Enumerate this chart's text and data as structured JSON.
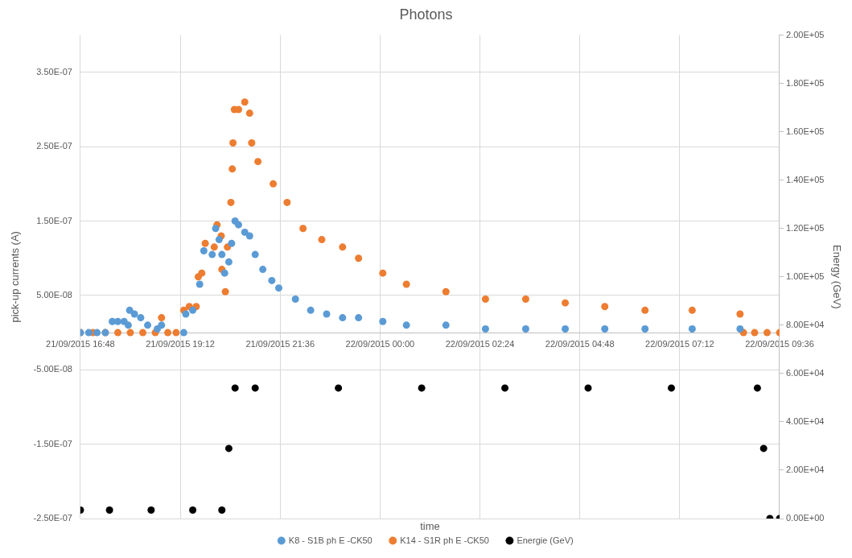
{
  "chart_data": {
    "type": "scatter",
    "title": "Photons",
    "xlabel": "time",
    "ylabel": "pick-up currents (A)",
    "y2label": "Energy (GeV)",
    "xlim": [
      "2015-09-21T16:48",
      "2015-09-22T09:36"
    ],
    "xticks": [
      {
        "value": "2015-09-21T16:48",
        "label": "21/09/2015 16:48"
      },
      {
        "value": "2015-09-21T19:12",
        "label": "21/09/2015 19:12"
      },
      {
        "value": "2015-09-21T21:36",
        "label": "21/09/2015 21:36"
      },
      {
        "value": "2015-09-22T00:00",
        "label": "22/09/2015 00:00"
      },
      {
        "value": "2015-09-22T02:24",
        "label": "22/09/2015 02:24"
      },
      {
        "value": "2015-09-22T04:48",
        "label": "22/09/2015 04:48"
      },
      {
        "value": "2015-09-22T07:12",
        "label": "22/09/2015 07:12"
      },
      {
        "value": "2015-09-22T09:36",
        "label": "22/09/2015 09:36"
      }
    ],
    "ylim": [
      -2.5e-07,
      4e-07
    ],
    "yticks": [
      {
        "value": -2.5e-07,
        "label": "-2.50E-07"
      },
      {
        "value": -1.5e-07,
        "label": "-1.50E-07"
      },
      {
        "value": -5e-08,
        "label": "-5.00E-08"
      },
      {
        "value": 5e-08,
        "label": "5.00E-08"
      },
      {
        "value": 1.5e-07,
        "label": "1.50E-07"
      },
      {
        "value": 2.5e-07,
        "label": "2.50E-07"
      },
      {
        "value": 3.5e-07,
        "label": "3.50E-07"
      }
    ],
    "y2lim": [
      0,
      200000
    ],
    "y2ticks": [
      {
        "value": 0,
        "label": "0.00E+00"
      },
      {
        "value": 20000,
        "label": "2.00E+04"
      },
      {
        "value": 40000,
        "label": "4.00E+04"
      },
      {
        "value": 60000,
        "label": "6.00E+04"
      },
      {
        "value": 80000,
        "label": "8.00E+04"
      },
      {
        "value": 100000,
        "label": "1.00E+05"
      },
      {
        "value": 120000,
        "label": "1.20E+05"
      },
      {
        "value": 140000,
        "label": "1.40E+05"
      },
      {
        "value": 160000,
        "label": "1.60E+05"
      },
      {
        "value": 180000,
        "label": "1.80E+05"
      },
      {
        "value": 200000,
        "label": "2.00E+05"
      }
    ],
    "grid": true,
    "legend": "bottom",
    "marker": "circle",
    "series": [
      {
        "name": "K8 - S1B ph E -CK50",
        "color": "#5b9bd5",
        "x": [
          "2015-09-21T16:48",
          "2015-09-21T17:00",
          "2015-09-21T17:12",
          "2015-09-21T17:24",
          "2015-09-21T17:34",
          "2015-09-21T17:42",
          "2015-09-21T17:51",
          "2015-09-21T17:57",
          "2015-09-21T17:59",
          "2015-09-21T18:06",
          "2015-09-21T18:15",
          "2015-09-21T18:25",
          "2015-09-21T18:39",
          "2015-09-21T18:45",
          "2015-09-21T19:17",
          "2015-09-21T19:20",
          "2015-09-21T19:30",
          "2015-09-21T19:40",
          "2015-09-21T19:46",
          "2015-09-21T19:58",
          "2015-09-21T20:03",
          "2015-09-21T20:08",
          "2015-09-21T20:12",
          "2015-09-21T20:16",
          "2015-09-21T20:22",
          "2015-09-21T20:26",
          "2015-09-21T20:31",
          "2015-09-21T20:36",
          "2015-09-21T20:45",
          "2015-09-21T20:52",
          "2015-09-21T21:00",
          "2015-09-21T21:11",
          "2015-09-21T21:24",
          "2015-09-21T21:34",
          "2015-09-21T21:58",
          "2015-09-21T22:20",
          "2015-09-21T22:43",
          "2015-09-21T23:06",
          "2015-09-21T23:29",
          "2015-09-22T00:04",
          "2015-09-22T00:38",
          "2015-09-22T01:35",
          "2015-09-22T02:32",
          "2015-09-22T03:30",
          "2015-09-22T04:27",
          "2015-09-22T05:24",
          "2015-09-22T06:22",
          "2015-09-22T07:30",
          "2015-09-22T08:39"
        ],
        "values": [
          0,
          0,
          0,
          0,
          1.5e-08,
          1.5e-08,
          1.5e-08,
          1e-08,
          3e-08,
          2.5e-08,
          2e-08,
          1e-08,
          5e-09,
          1e-08,
          0,
          2.5e-08,
          3e-08,
          6.5e-08,
          1.1e-07,
          1.05e-07,
          1.4e-07,
          1.25e-07,
          1.05e-07,
          8e-08,
          9.5e-08,
          1.2e-07,
          1.5e-07,
          1.45e-07,
          1.35e-07,
          1.3e-07,
          1.05e-07,
          8.5e-08,
          7e-08,
          6e-08,
          4.5e-08,
          3e-08,
          2.5e-08,
          2e-08,
          2e-08,
          1.5e-08,
          1e-08,
          1e-08,
          5e-09,
          5e-09,
          5e-09,
          5e-09,
          5e-09,
          5e-09,
          5e-09
        ]
      },
      {
        "name": "K14 - S1R ph E -CK50",
        "color": "#ed7d31",
        "x": [
          "2015-09-21T16:48",
          "2015-09-21T17:06",
          "2015-09-21T17:24",
          "2015-09-21T17:42",
          "2015-09-21T18:00",
          "2015-09-21T18:18",
          "2015-09-21T18:36",
          "2015-09-21T18:45",
          "2015-09-21T18:54",
          "2015-09-21T19:06",
          "2015-09-21T19:17",
          "2015-09-21T19:25",
          "2015-09-21T19:35",
          "2015-09-21T19:38",
          "2015-09-21T19:43",
          "2015-09-21T19:48",
          "2015-09-21T20:01",
          "2015-09-21T20:05",
          "2015-09-21T20:11",
          "2015-09-21T20:12",
          "2015-09-21T20:17",
          "2015-09-21T20:20",
          "2015-09-21T20:25",
          "2015-09-21T20:27",
          "2015-09-21T20:28",
          "2015-09-21T20:30",
          "2015-09-21T20:36",
          "2015-09-21T20:45",
          "2015-09-21T20:52",
          "2015-09-21T20:55",
          "2015-09-21T21:04",
          "2015-09-21T21:26",
          "2015-09-21T21:46",
          "2015-09-21T22:09",
          "2015-09-21T22:36",
          "2015-09-21T23:06",
          "2015-09-21T23:29",
          "2015-09-22T00:04",
          "2015-09-22T00:38",
          "2015-09-22T01:35",
          "2015-09-22T02:32",
          "2015-09-22T03:30",
          "2015-09-22T04:27",
          "2015-09-22T05:24",
          "2015-09-22T06:22",
          "2015-09-22T07:30",
          "2015-09-22T08:39",
          "2015-09-22T08:44",
          "2015-09-22T09:00",
          "2015-09-22T09:18",
          "2015-09-22T09:36"
        ],
        "values": [
          0,
          0,
          0,
          0,
          0,
          0,
          0,
          2e-08,
          0,
          0,
          3e-08,
          3.5e-08,
          3.5e-08,
          7.5e-08,
          8e-08,
          1.2e-07,
          1.15e-07,
          1.45e-07,
          1.3e-07,
          8.5e-08,
          5.5e-08,
          1.15e-07,
          1.75e-07,
          2.2e-07,
          2.55e-07,
          3e-07,
          3e-07,
          3.1e-07,
          2.95e-07,
          2.55e-07,
          2.3e-07,
          2e-07,
          1.75e-07,
          1.4e-07,
          1.25e-07,
          1.15e-07,
          1e-07,
          8e-08,
          6.5e-08,
          5.5e-08,
          4.5e-08,
          4.5e-08,
          4e-08,
          3.5e-08,
          3e-08,
          3e-08,
          2.5e-08,
          0,
          0,
          0,
          0
        ]
      },
      {
        "name": "Energie (GeV)",
        "color": "#000000",
        "axis": "y2",
        "x": [
          "2015-09-21T16:48",
          "2015-09-21T17:30",
          "2015-09-21T18:30",
          "2015-09-21T19:30",
          "2015-09-21T20:12",
          "2015-09-21T20:22",
          "2015-09-21T20:31",
          "2015-09-21T21:00",
          "2015-09-21T23:00",
          "2015-09-22T01:00",
          "2015-09-22T03:00",
          "2015-09-22T05:00",
          "2015-09-22T07:00",
          "2015-09-22T09:04",
          "2015-09-22T09:13",
          "2015-09-22T09:22",
          "2015-09-22T09:36"
        ],
        "values": [
          3500,
          3500,
          3500,
          3500,
          3500,
          29000,
          54000,
          54000,
          54000,
          54000,
          54000,
          54000,
          54000,
          54000,
          29000,
          0,
          0
        ]
      }
    ]
  }
}
